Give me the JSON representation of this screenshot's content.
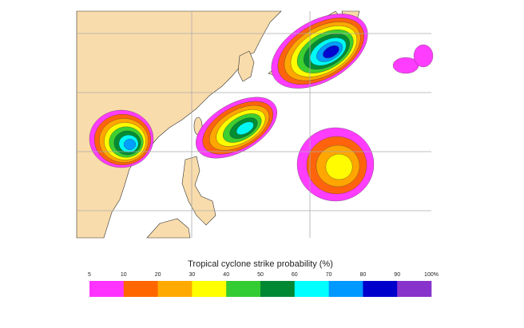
{
  "legend": {
    "title": "Tropical cyclone strike probability (%)",
    "ticks": [
      "5",
      "10",
      "20",
      "30",
      "40",
      "50",
      "60",
      "70",
      "80",
      "90",
      "100%"
    ],
    "colors": [
      "#ff33ff",
      "#ff6600",
      "#ffaa00",
      "#ffff00",
      "#33cc33",
      "#008833",
      "#00ffff",
      "#0099ff",
      "#0000cc",
      "#8833cc"
    ]
  }
}
